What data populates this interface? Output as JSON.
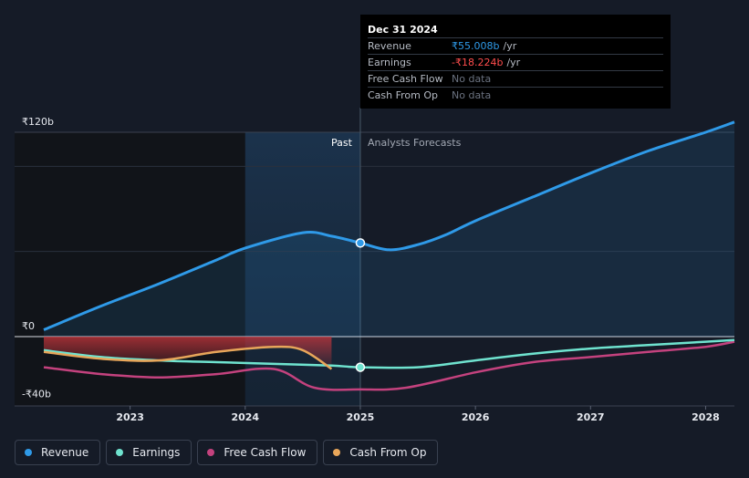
{
  "colors": {
    "revenue": "#2f9ae8",
    "earnings": "#6fe3cf",
    "free_cash_flow": "#c4427e",
    "cash_from_op": "#e8a65a",
    "background": "#151b27"
  },
  "tooltip": {
    "date": "Dec 31 2024",
    "rows": [
      {
        "label": "Revenue",
        "value": "₹55.008b",
        "unit": "/yr"
      },
      {
        "label": "Earnings",
        "value": "-₹18.224b",
        "unit": "/yr"
      },
      {
        "label": "Free Cash Flow",
        "value": "No data",
        "unit": ""
      },
      {
        "label": "Cash From Op",
        "value": "No data",
        "unit": ""
      }
    ]
  },
  "labels": {
    "past": "Past",
    "forecast": "Analysts Forecasts"
  },
  "legend": [
    {
      "label": "Revenue",
      "icon": "revenue-dot-icon"
    },
    {
      "label": "Earnings",
      "icon": "earnings-dot-icon"
    },
    {
      "label": "Free Cash Flow",
      "icon": "free-cash-flow-dot-icon"
    },
    {
      "label": "Cash From Op",
      "icon": "cash-from-op-dot-icon"
    }
  ],
  "chart_data": {
    "type": "line",
    "title": "",
    "xlabel": "",
    "ylabel": "",
    "xlim": [
      2022.25,
      2028.25
    ],
    "ylim": [
      -40,
      120
    ],
    "y_ticks": [
      {
        "value": 120,
        "label": "₹120b"
      },
      {
        "value": 0,
        "label": "₹0"
      },
      {
        "value": -40,
        "label": "-₹40b"
      }
    ],
    "x_ticks": [
      {
        "value": 2023,
        "label": "2023"
      },
      {
        "value": 2024,
        "label": "2024"
      },
      {
        "value": 2025,
        "label": "2025"
      },
      {
        "value": 2026,
        "label": "2026"
      },
      {
        "value": 2027,
        "label": "2027"
      },
      {
        "value": 2028,
        "label": "2028"
      }
    ],
    "gridlines": [
      100,
      50
    ],
    "past_end": 2025.0,
    "highlight_start": 2024.0,
    "series": [
      {
        "name": "Revenue",
        "key": "revenue",
        "x": [
          2022.25,
          2022.75,
          2023.25,
          2023.75,
          2024.0,
          2024.5,
          2024.75,
          2025.0,
          2025.25,
          2025.5,
          2025.75,
          2026.0,
          2026.5,
          2027.0,
          2027.5,
          2028.0,
          2028.25
        ],
        "values": [
          4,
          18,
          31,
          45,
          52,
          61,
          59,
          55,
          51,
          54,
          60,
          68,
          82,
          96,
          109,
          120,
          126
        ]
      },
      {
        "name": "Earnings",
        "key": "earnings",
        "x": [
          2022.25,
          2022.75,
          2023.25,
          2023.75,
          2024.25,
          2024.75,
          2025.0,
          2025.5,
          2026.0,
          2026.5,
          2027.0,
          2027.5,
          2028.0,
          2028.25
        ],
        "values": [
          -8,
          -12,
          -14,
          -15,
          -16,
          -17,
          -18,
          -18,
          -14,
          -10,
          -7,
          -5,
          -3,
          -2
        ]
      },
      {
        "name": "Free Cash Flow",
        "key": "free_cash_flow",
        "x": [
          2022.25,
          2022.75,
          2023.25,
          2023.75,
          2024.25,
          2024.6,
          2025.0,
          2025.4,
          2026.0,
          2026.5,
          2027.0,
          2027.5,
          2028.0,
          2028.25
        ],
        "values": [
          -18,
          -22,
          -24,
          -22,
          -19,
          -30,
          -31,
          -30,
          -21,
          -15,
          -12,
          -9,
          -6,
          -3
        ]
      },
      {
        "name": "Cash From Op",
        "key": "cash_from_op",
        "x": [
          2022.25,
          2022.75,
          2023.25,
          2023.75,
          2024.25,
          2024.5,
          2024.75
        ],
        "values": [
          -9,
          -13,
          -14,
          -9,
          -6,
          -8,
          -19
        ]
      }
    ],
    "tooltip_markers": [
      {
        "series": "revenue",
        "x": 2025.0,
        "value": 55
      },
      {
        "series": "earnings",
        "x": 2025.0,
        "value": -18
      }
    ]
  }
}
